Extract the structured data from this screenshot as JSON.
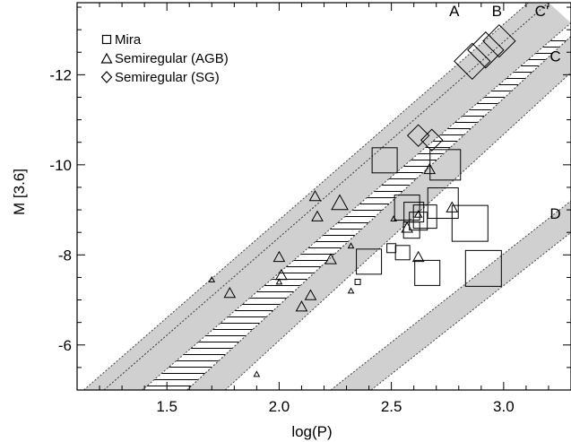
{
  "chart_data": {
    "type": "scatter",
    "xlabel": "log(P)",
    "ylabel": "M [3.6]",
    "xlim": [
      1.1,
      3.3
    ],
    "ylim": [
      -5.0,
      -13.6
    ],
    "y_axis_inverted": true,
    "x_ticks": [
      1.5,
      2.0,
      2.5,
      3.0
    ],
    "x_tick_labels": [
      "1.5",
      "2.0",
      "2.5",
      "3.0"
    ],
    "y_ticks": [
      -6,
      -8,
      -10,
      -12
    ],
    "y_tick_labels": [
      "-6",
      "-8",
      "-10",
      "-12"
    ],
    "grid": false,
    "legend_position": "top-left",
    "legend": [
      {
        "marker": "square",
        "label": "Mira"
      },
      {
        "marker": "triangle",
        "label": "Semiregular (AGB)"
      },
      {
        "marker": "diamond",
        "label": "Semiregular (SG)"
      }
    ],
    "bands": [
      {
        "name": "A",
        "fill": "dotted-gray",
        "lower_edge": [
          [
            1.13,
            -5.0
          ],
          [
            3.11,
            -13.6
          ]
        ],
        "upper_edge": [
          [
            1.22,
            -5.0
          ],
          [
            3.2,
            -13.6
          ]
        ]
      },
      {
        "name": "B",
        "fill": "hatched",
        "lower_edge": [
          [
            1.39,
            -5.0
          ],
          [
            3.1,
            -12.85
          ]
        ],
        "upper_edge": [
          [
            1.59,
            -5.0
          ],
          [
            3.3,
            -12.85
          ]
        ]
      },
      {
        "name": "C'",
        "fill": "dotted-gray",
        "lower_edge": [
          [
            1.22,
            -5.0
          ],
          [
            3.2,
            -13.6
          ]
        ],
        "upper_edge": [
          [
            1.39,
            -5.0
          ],
          [
            3.3,
            -13.15
          ]
        ]
      },
      {
        "name": "C",
        "fill": "dotted-gray",
        "lower_edge": [
          [
            1.59,
            -5.0
          ],
          [
            3.3,
            -12.85
          ]
        ],
        "upper_edge": [
          [
            1.76,
            -5.0
          ],
          [
            3.3,
            -12.05
          ]
        ]
      },
      {
        "name": "D",
        "fill": "dotted-gray",
        "lower_edge": [
          [
            2.23,
            -5.0
          ],
          [
            3.3,
            -9.2
          ]
        ],
        "upper_edge": [
          [
            2.41,
            -5.0
          ],
          [
            3.3,
            -8.5
          ]
        ]
      }
    ],
    "band_labels": [
      {
        "text": "A",
        "x": 2.78,
        "y": -13.3
      },
      {
        "text": "B",
        "x": 2.97,
        "y": -13.3
      },
      {
        "text": "C'",
        "x": 3.17,
        "y": -13.3
      },
      {
        "text": "C",
        "x": 3.23,
        "y": -12.3
      },
      {
        "text": "D",
        "x": 3.23,
        "y": -8.8
      }
    ],
    "series": [
      {
        "name": "Mira",
        "marker": "square",
        "points": [
          {
            "x": 2.47,
            "y": -10.1,
            "s": 14
          },
          {
            "x": 2.74,
            "y": -10.0,
            "s": 17
          },
          {
            "x": 2.57,
            "y": -9.05,
            "s": 14
          },
          {
            "x": 2.6,
            "y": -8.95,
            "s": 11
          },
          {
            "x": 2.62,
            "y": -8.75,
            "s": 10
          },
          {
            "x": 2.59,
            "y": -8.55,
            "s": 9
          },
          {
            "x": 2.65,
            "y": -8.85,
            "s": 13
          },
          {
            "x": 2.73,
            "y": -9.15,
            "s": 17
          },
          {
            "x": 2.85,
            "y": -8.7,
            "s": 20
          },
          {
            "x": 2.4,
            "y": -7.85,
            "s": 14
          },
          {
            "x": 2.55,
            "y": -8.05,
            "s": 8
          },
          {
            "x": 2.5,
            "y": -8.15,
            "s": 5
          },
          {
            "x": 2.66,
            "y": -7.6,
            "s": 14
          },
          {
            "x": 2.91,
            "y": -7.7,
            "s": 20
          },
          {
            "x": 2.35,
            "y": -7.4,
            "s": 3
          }
        ]
      },
      {
        "name": "Semiregular (AGB)",
        "marker": "triangle",
        "points": [
          {
            "x": 1.7,
            "y": -7.45,
            "s": 3
          },
          {
            "x": 1.78,
            "y": -7.15,
            "s": 6
          },
          {
            "x": 1.9,
            "y": -5.35,
            "s": 3
          },
          {
            "x": 2.0,
            "y": -7.95,
            "s": 6
          },
          {
            "x": 2.0,
            "y": -7.4,
            "s": 3
          },
          {
            "x": 2.01,
            "y": -7.55,
            "s": 6
          },
          {
            "x": 2.1,
            "y": -6.85,
            "s": 6
          },
          {
            "x": 2.14,
            "y": -7.1,
            "s": 6
          },
          {
            "x": 2.16,
            "y": -9.3,
            "s": 6
          },
          {
            "x": 2.17,
            "y": -8.85,
            "s": 6
          },
          {
            "x": 2.23,
            "y": -7.9,
            "s": 6
          },
          {
            "x": 2.27,
            "y": -9.15,
            "s": 9
          },
          {
            "x": 2.32,
            "y": -8.2,
            "s": 3
          },
          {
            "x": 2.32,
            "y": -7.2,
            "s": 3
          },
          {
            "x": 2.51,
            "y": -8.8,
            "s": 3
          },
          {
            "x": 2.57,
            "y": -8.6,
            "s": 6
          },
          {
            "x": 2.62,
            "y": -7.95,
            "s": 6
          },
          {
            "x": 2.62,
            "y": -8.9,
            "s": 4
          },
          {
            "x": 2.67,
            "y": -9.9,
            "s": 6
          },
          {
            "x": 2.77,
            "y": -9.05,
            "s": 6
          }
        ]
      },
      {
        "name": "Semiregular (SG)",
        "marker": "diamond",
        "points": [
          {
            "x": 2.62,
            "y": -10.65,
            "s": 12
          },
          {
            "x": 2.68,
            "y": -10.55,
            "s": 12
          },
          {
            "x": 2.86,
            "y": -12.3,
            "s": 20
          },
          {
            "x": 2.92,
            "y": -12.55,
            "s": 20
          },
          {
            "x": 2.98,
            "y": -12.75,
            "s": 18
          }
        ]
      }
    ]
  }
}
